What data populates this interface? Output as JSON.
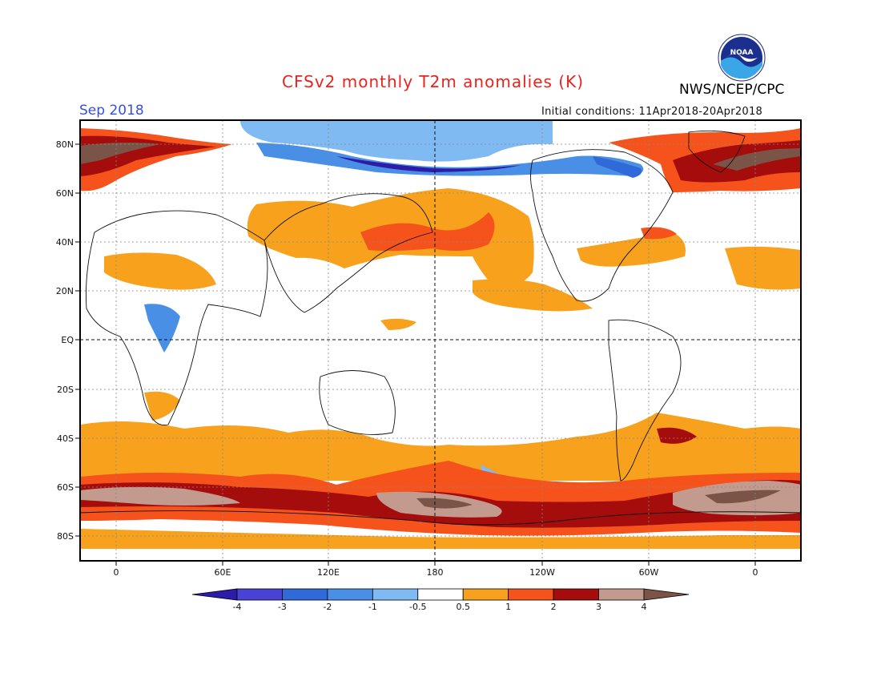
{
  "header": {
    "title": "CFSv2 monthly T2m anomalies (K)",
    "organization": "NWS/NCEP/CPC",
    "valid_month": "Sep 2018",
    "initial_conditions": "Initial conditions: 11Apr2018-20Apr2018",
    "logo_text": "NOAA"
  },
  "map": {
    "lat_labels": [
      "80N",
      "60N",
      "40N",
      "20N",
      "EQ",
      "20S",
      "40S",
      "60S",
      "80S"
    ],
    "lon_labels": [
      "0",
      "60E",
      "120E",
      "180",
      "120W",
      "60W",
      "0"
    ]
  },
  "colorbar": {
    "tick_labels": [
      "-4",
      "-3",
      "-2",
      "-1",
      "-0.5",
      "0.5",
      "1",
      "2",
      "3",
      "4"
    ],
    "colors": [
      "#2c1ca8",
      "#4a42d4",
      "#2f6ad8",
      "#4a8fe6",
      "#7fbaf2",
      "#ffffff",
      "#f7a11c",
      "#f5521c",
      "#a50c0c",
      "#c29a8e",
      "#7a5446"
    ]
  },
  "palette": {
    "title": "#e8231e",
    "valid_month": "#3350e8",
    "neg2": "#2f6ad8",
    "neg1": "#4a8fe6",
    "neg05": "#7fbaf2",
    "neg3": "#4a42d4",
    "pos05": "#f7a11c",
    "pos1": "#f5521c",
    "pos2": "#a50c0c",
    "pos3": "#c29a8e",
    "pos4": "#7a5446"
  }
}
